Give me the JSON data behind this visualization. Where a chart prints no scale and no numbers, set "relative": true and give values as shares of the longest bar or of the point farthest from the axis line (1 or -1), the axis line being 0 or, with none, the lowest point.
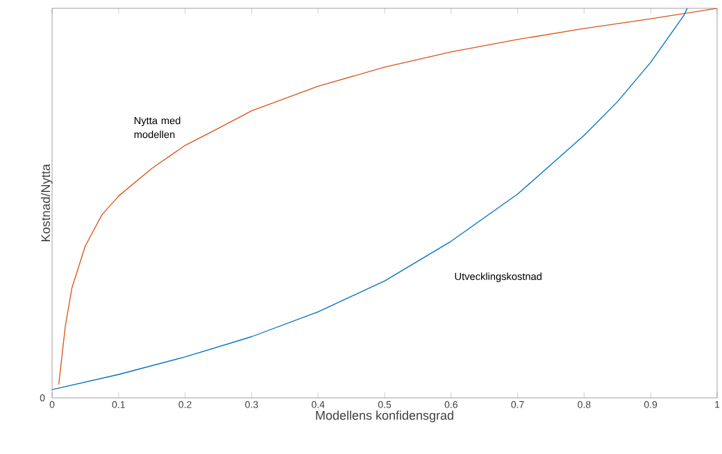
{
  "chart_data": {
    "type": "line",
    "xlabel": "Modellens konfidensgrad",
    "ylabel": "Kostnad/Nytta",
    "relative": true,
    "xlim": [
      0,
      1
    ],
    "xticks": [
      0,
      0.1,
      0.2,
      0.3,
      0.4,
      0.5,
      0.6,
      0.7,
      0.8,
      0.9,
      1
    ],
    "annotations": [
      "0"
    ],
    "series": [
      {
        "name": "Nytta med modellen",
        "color": "#d95319",
        "x": [
          0.01,
          0.02,
          0.03,
          0.05,
          0.075,
          0.1,
          0.15,
          0.2,
          0.25,
          0.3,
          0.4,
          0.5,
          0.6,
          0.7,
          0.8,
          0.9,
          1
        ],
        "values": [
          0.034,
          0.185,
          0.283,
          0.39,
          0.47,
          0.518,
          0.589,
          0.648,
          0.692,
          0.737,
          0.8,
          0.849,
          0.888,
          0.92,
          0.948,
          0.973,
          1
        ]
      },
      {
        "name": "Utvecklingskostnad",
        "color": "#0072bd",
        "x": [
          0,
          0.1,
          0.2,
          0.3,
          0.4,
          0.5,
          0.6,
          0.7,
          0.8,
          0.85,
          0.9,
          0.95,
          0.955
        ],
        "values": [
          0.021,
          0.06,
          0.105,
          0.157,
          0.221,
          0.3,
          0.402,
          0.523,
          0.674,
          0.76,
          0.861,
          0.982,
          1
        ]
      }
    ]
  }
}
